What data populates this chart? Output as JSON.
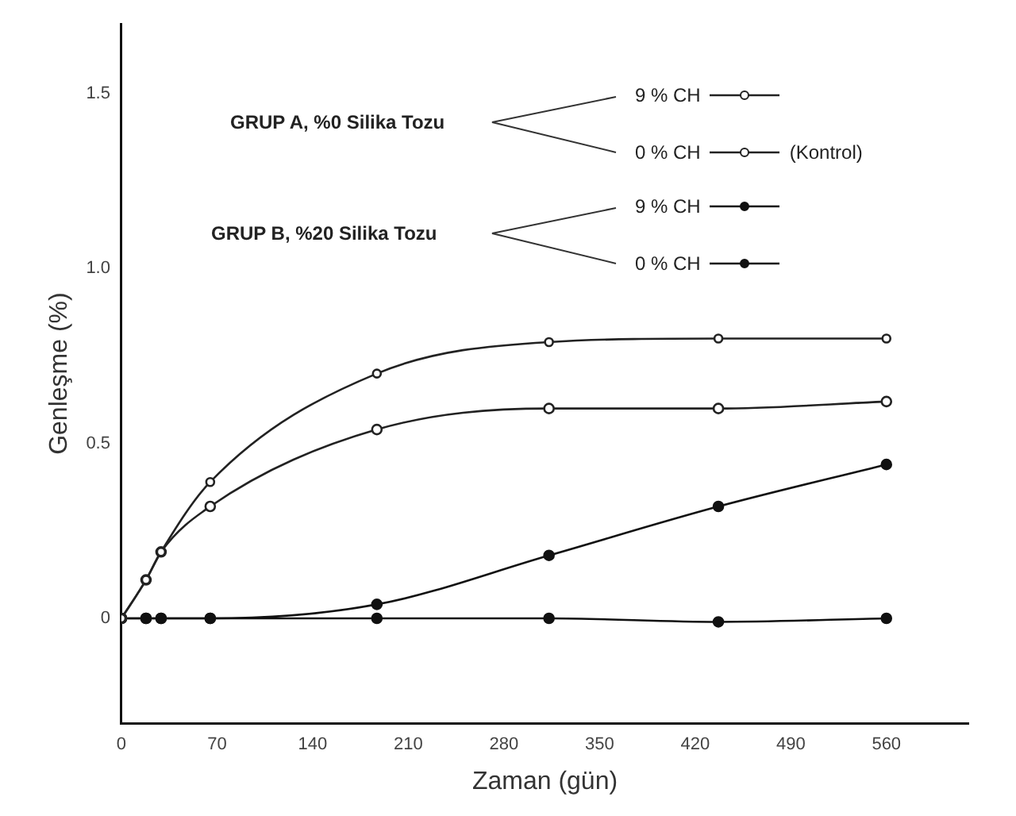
{
  "chart_data": {
    "type": "line",
    "xlabel": "Zaman (gün)",
    "ylabel": "Genleşme (%)",
    "xlim": [
      0,
      620
    ],
    "xticks": [
      0,
      70,
      140,
      210,
      280,
      350,
      420,
      490,
      560
    ],
    "ylim": [
      -0.3,
      1.7
    ],
    "yticks": [
      0,
      {
        "value": 0.5,
        "label": "0.5"
      },
      {
        "value": 1,
        "label": "1.0"
      },
      {
        "value": 1.5,
        "label": "1.5"
      }
    ],
    "grid": false,
    "legend": "top right",
    "marker": "circle",
    "line_style": "solid",
    "annotations": [
      "GRUP A, %0 Silika Tozu",
      "GRUP B, %20 Silika Tozu",
      "(Kontrol)"
    ],
    "x": [
      0,
      18,
      29,
      65,
      187,
      313,
      437,
      560
    ],
    "series": [
      {
        "name": "9 % CH",
        "color": "#222222",
        "values": [
          0,
          0.11,
          0.19,
          0.39,
          0.7,
          0.79,
          0.8,
          0.8
        ]
      },
      {
        "name": "0 % CH",
        "color": "#222222",
        "values": [
          0,
          0.11,
          0.19,
          0.32,
          0.54,
          0.6,
          0.6,
          0.62
        ]
      },
      {
        "name": "9 % CH",
        "color": "#111111",
        "values": [
          0,
          0,
          0,
          0,
          0.04,
          0.18,
          0.32,
          0.44
        ]
      },
      {
        "name": "0 % CH",
        "color": "#111111",
        "values": [
          0,
          0,
          0,
          0,
          0,
          0,
          -0.01,
          0
        ]
      }
    ]
  }
}
